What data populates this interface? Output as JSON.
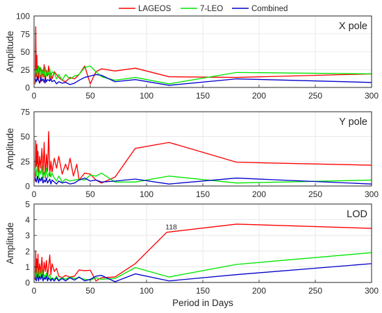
{
  "legend": {
    "entries": [
      {
        "name": "LAGEOS",
        "color": "#ff0000"
      },
      {
        "name": "7-LEO",
        "color": "#00e600"
      },
      {
        "name": "Combined",
        "color": "#0000cc"
      }
    ],
    "placement": "top-center"
  },
  "xlabel": "Period in Days",
  "chart_data": [
    {
      "type": "line",
      "title": "X pole",
      "ylabel": "Amplitude",
      "xlabel": "",
      "xlim": [
        0,
        300
      ],
      "ylim": [
        0,
        100
      ],
      "xticks": [
        0,
        50,
        100,
        150,
        200,
        250,
        300
      ],
      "yticks": [
        0,
        25,
        50,
        75,
        100
      ],
      "grid": true,
      "series": [
        {
          "name": "LAGEOS",
          "color": "#ff0000",
          "x": [
            1,
            1.5,
            2,
            2.5,
            3,
            3.5,
            4,
            5,
            6,
            7,
            8,
            9,
            10,
            11,
            12,
            13,
            14,
            15,
            16,
            18,
            20,
            22,
            25,
            28,
            32,
            36,
            40,
            45,
            50,
            55,
            60,
            72,
            90,
            120,
            180,
            300
          ],
          "y": [
            5,
            85,
            15,
            45,
            10,
            30,
            12,
            28,
            8,
            25,
            14,
            32,
            6,
            24,
            16,
            30,
            9,
            20,
            12,
            22,
            18,
            14,
            10,
            8,
            14,
            12,
            18,
            30,
            5,
            22,
            26,
            23,
            27,
            15,
            14,
            19
          ]
        },
        {
          "name": "7-LEO",
          "color": "#00e600",
          "x": [
            1,
            2,
            3,
            4,
            5,
            6,
            7,
            8,
            9,
            10,
            11,
            12,
            13,
            14,
            15,
            16,
            18,
            20,
            22,
            25,
            28,
            32,
            36,
            40,
            45,
            50,
            55,
            60,
            72,
            90,
            120,
            180,
            300
          ],
          "y": [
            20,
            26,
            16,
            30,
            14,
            28,
            18,
            24,
            15,
            28,
            16,
            22,
            18,
            26,
            14,
            22,
            20,
            12,
            18,
            10,
            18,
            12,
            16,
            18,
            28,
            30,
            22,
            15,
            10,
            14,
            5,
            21,
            19
          ]
        },
        {
          "name": "Combined",
          "color": "#0000cc",
          "x": [
            1,
            2,
            3,
            4,
            5,
            6,
            7,
            8,
            9,
            10,
            11,
            12,
            13,
            14,
            15,
            16,
            18,
            20,
            22,
            25,
            28,
            32,
            36,
            40,
            45,
            50,
            55,
            60,
            72,
            90,
            120,
            180,
            300
          ],
          "y": [
            12,
            8,
            15,
            10,
            6,
            14,
            9,
            12,
            7,
            13,
            8,
            11,
            10,
            9,
            12,
            8,
            10,
            5,
            8,
            6,
            7,
            4,
            6,
            10,
            14,
            16,
            18,
            17,
            8,
            11,
            3,
            12,
            7
          ]
        }
      ]
    },
    {
      "type": "line",
      "title": "Y pole",
      "ylabel": "Amplitude",
      "xlabel": "",
      "xlim": [
        0,
        300
      ],
      "ylim": [
        0,
        75
      ],
      "xticks": [
        0,
        50,
        100,
        150,
        200,
        250,
        300
      ],
      "yticks": [
        0,
        25,
        50,
        75
      ],
      "grid": true,
      "series": [
        {
          "name": "LAGEOS",
          "color": "#ff0000",
          "x": [
            1,
            1.5,
            2,
            2.5,
            3,
            3.5,
            4,
            5,
            6,
            7,
            8,
            9,
            10,
            11,
            12,
            13,
            14,
            15,
            16,
            18,
            20,
            22,
            25,
            28,
            30,
            32,
            35,
            38,
            40,
            45,
            50,
            55,
            60,
            72,
            90,
            120,
            180,
            300
          ],
          "y": [
            5,
            46,
            20,
            42,
            15,
            35,
            10,
            30,
            18,
            38,
            12,
            44,
            8,
            32,
            15,
            55,
            10,
            25,
            14,
            28,
            18,
            30,
            12,
            22,
            16,
            28,
            10,
            22,
            6,
            13,
            12,
            6,
            3,
            9,
            38,
            44,
            24,
            21
          ]
        },
        {
          "name": "7-LEO",
          "color": "#00e600",
          "x": [
            1,
            2,
            3,
            4,
            5,
            6,
            7,
            8,
            9,
            10,
            11,
            12,
            13,
            14,
            15,
            16,
            18,
            20,
            22,
            25,
            28,
            32,
            36,
            40,
            45,
            50,
            55,
            60,
            72,
            90,
            120,
            180,
            300
          ],
          "y": [
            18,
            10,
            22,
            8,
            16,
            12,
            20,
            6,
            14,
            10,
            18,
            8,
            12,
            15,
            9,
            13,
            8,
            5,
            10,
            4,
            7,
            5,
            6,
            7,
            6,
            11,
            10,
            13,
            4,
            4,
            10,
            3,
            6
          ]
        },
        {
          "name": "Combined",
          "color": "#0000cc",
          "x": [
            1,
            2,
            3,
            4,
            5,
            6,
            7,
            8,
            9,
            10,
            11,
            12,
            13,
            14,
            15,
            16,
            18,
            20,
            22,
            25,
            28,
            32,
            36,
            40,
            45,
            50,
            55,
            60,
            72,
            90,
            120,
            180,
            300
          ],
          "y": [
            8,
            4,
            10,
            3,
            8,
            5,
            9,
            3,
            6,
            4,
            8,
            3,
            5,
            7,
            2,
            6,
            4,
            2,
            5,
            3,
            4,
            2,
            3,
            6,
            8,
            5,
            6,
            4,
            5,
            7,
            2,
            8,
            2
          ]
        }
      ]
    },
    {
      "type": "line",
      "title": "LOD",
      "ylabel": "Amplitude",
      "xlabel": "Period in Days",
      "xlim": [
        0,
        300
      ],
      "ylim": [
        0,
        5
      ],
      "xticks": [
        0,
        50,
        100,
        150,
        200,
        250,
        300
      ],
      "yticks": [
        0,
        1,
        2,
        3,
        4,
        5
      ],
      "grid": true,
      "annotations": [
        {
          "text": "118",
          "x": 118,
          "y": 3.2
        }
      ],
      "series": [
        {
          "name": "LAGEOS",
          "color": "#ff0000",
          "x": [
            1,
            1.5,
            2,
            2.5,
            3,
            3.5,
            4,
            5,
            6,
            7,
            8,
            9,
            10,
            11,
            12,
            13,
            14,
            15,
            16,
            18,
            20,
            22,
            25,
            28,
            32,
            36,
            40,
            45,
            50,
            55,
            60,
            72,
            90,
            118,
            180,
            300
          ],
          "y": [
            0.2,
            2.0,
            0.5,
            1.5,
            0.3,
            1.8,
            0.4,
            1.2,
            0.6,
            1.6,
            0.3,
            1.3,
            0.7,
            1.4,
            0.4,
            1.0,
            1.75,
            0.5,
            1.2,
            0.7,
            0.9,
            0.4,
            0.3,
            0.45,
            0.35,
            0.4,
            0.8,
            0.75,
            0.78,
            0.1,
            0.3,
            0.35,
            1.2,
            3.2,
            3.72,
            3.45
          ]
        },
        {
          "name": "7-LEO",
          "color": "#00e600",
          "x": [
            1,
            2,
            3,
            4,
            5,
            6,
            7,
            8,
            9,
            10,
            11,
            12,
            13,
            14,
            15,
            16,
            18,
            20,
            22,
            25,
            28,
            32,
            36,
            40,
            45,
            50,
            55,
            60,
            72,
            90,
            120,
            180,
            300
          ],
          "y": [
            0.6,
            0.3,
            0.9,
            0.2,
            0.7,
            0.4,
            0.8,
            0.2,
            0.5,
            0.3,
            0.6,
            0.2,
            0.4,
            0.5,
            0.15,
            0.3,
            0.2,
            0.4,
            0.15,
            0.3,
            0.2,
            0.35,
            0.25,
            0.3,
            0.2,
            0.15,
            0.3,
            0.2,
            0.25,
            0.95,
            0.35,
            1.15,
            1.9
          ]
        },
        {
          "name": "Combined",
          "color": "#0000cc",
          "x": [
            1,
            2,
            3,
            4,
            5,
            6,
            7,
            8,
            9,
            10,
            11,
            12,
            13,
            14,
            15,
            16,
            18,
            20,
            22,
            25,
            28,
            32,
            36,
            40,
            45,
            50,
            55,
            60,
            72,
            90,
            120,
            180,
            300
          ],
          "y": [
            0.3,
            0.1,
            0.5,
            0.1,
            0.4,
            0.2,
            0.5,
            0.1,
            0.3,
            0.2,
            0.4,
            0.1,
            0.3,
            0.2,
            0.1,
            0.25,
            0.1,
            0.3,
            0.1,
            0.25,
            0.1,
            0.3,
            0.15,
            0.35,
            0.1,
            0.2,
            0.4,
            0.45,
            0.05,
            0.55,
            0.1,
            0.5,
            1.2
          ]
        }
      ]
    }
  ]
}
